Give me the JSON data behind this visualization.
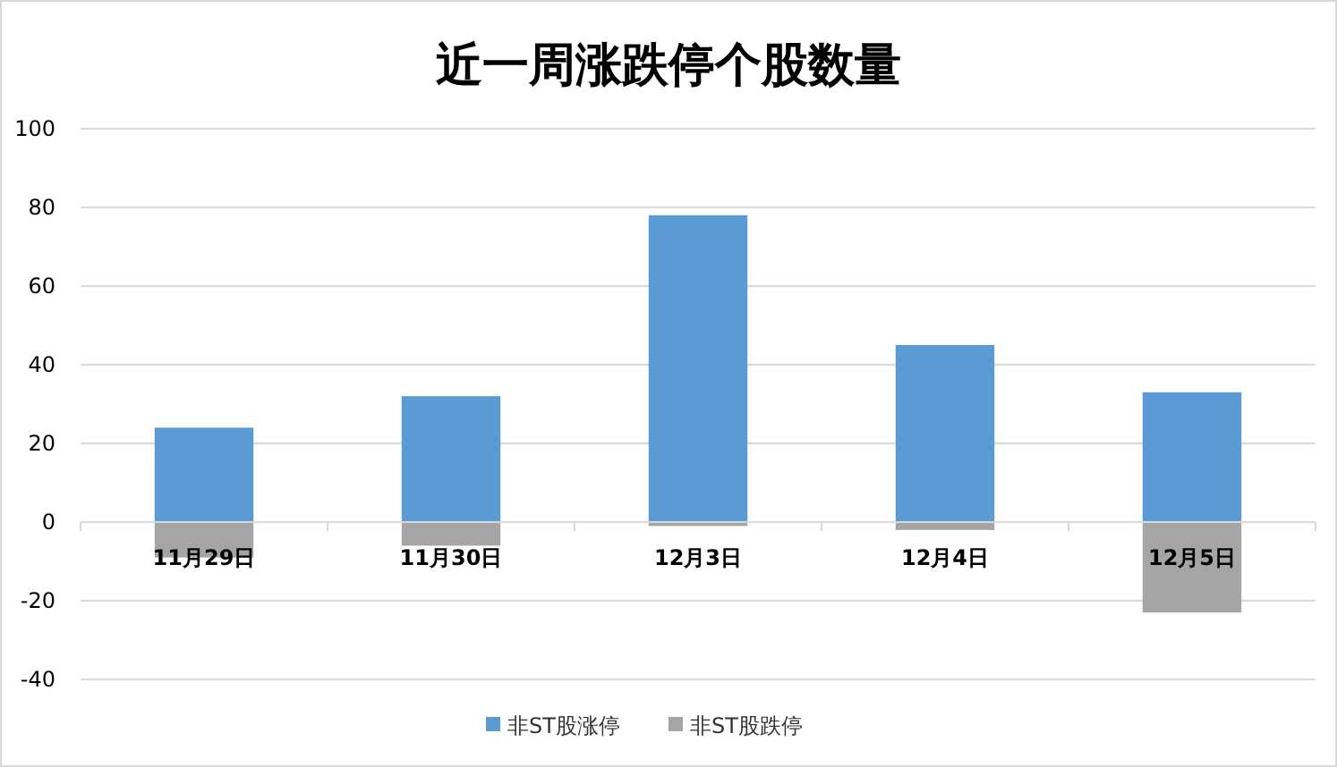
{
  "chart_data": {
    "type": "bar",
    "title": "近一周涨跌停个股数量",
    "categories": [
      "11月29日",
      "11月30日",
      "12月3日",
      "12月4日",
      "12月5日"
    ],
    "stacked": true,
    "series": [
      {
        "name": "非ST股涨停",
        "color": "#5b9bd5",
        "values": [
          24,
          32,
          78,
          45,
          33
        ]
      },
      {
        "name": "非ST股跌停",
        "color": "#a5a5a5",
        "values": [
          -9,
          -6,
          -1,
          -2,
          -23
        ]
      }
    ],
    "ylim": [
      -40,
      100
    ],
    "yticks": [
      -40,
      -20,
      0,
      20,
      40,
      60,
      80,
      100
    ],
    "grid": "y",
    "legend": "bottom"
  }
}
